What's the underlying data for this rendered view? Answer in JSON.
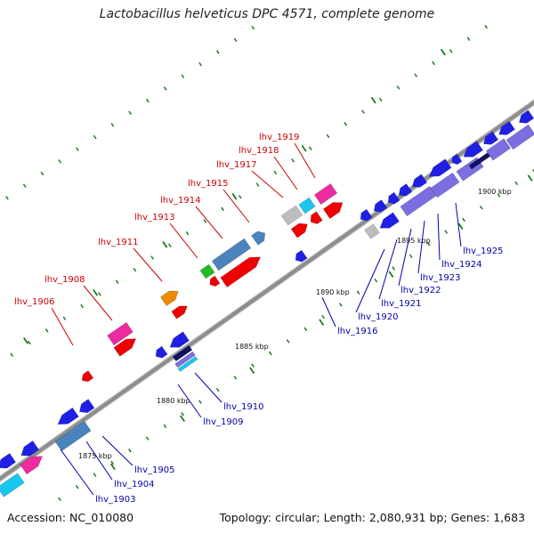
{
  "title": "Lactobacillus helveticus DPC 4571, complete genome",
  "footer": {
    "accession": "Accession: NC_010080",
    "topology": "Topology: circular; Length: 2,080,931 bp; Genes: 1,683"
  },
  "colors": {
    "forward_label": "#cc0000",
    "reverse_label": "#0000aa",
    "backbone": "#8c8c8c",
    "tick": "#1e7a1e",
    "cds_blue": "#1f1fe6",
    "cds_red": "#ee0000",
    "cds_pink": "#ee2aa0",
    "cds_steel": "#4b84bd",
    "cds_purple": "#7a6ee0",
    "cds_gray": "#bdbdbd",
    "cds_cyan": "#18c6ee",
    "cds_orange": "#ee8800",
    "cds_green": "#22bb22",
    "cds_navy": "#101060"
  },
  "ticks": [
    {
      "label": "1875 kbp"
    },
    {
      "label": "1880 kbp"
    },
    {
      "label": "1885 kbp"
    },
    {
      "label": "1890 kbp"
    },
    {
      "label": "1895 kbp"
    },
    {
      "label": "1900 kbp"
    }
  ],
  "forward_labels": [
    {
      "text": "lhv_1906"
    },
    {
      "text": "lhv_1908"
    },
    {
      "text": "lhv_1911"
    },
    {
      "text": "lhv_1913"
    },
    {
      "text": "lhv_1914"
    },
    {
      "text": "lhv_1915"
    },
    {
      "text": "lhv_1917"
    },
    {
      "text": "lhv_1918"
    },
    {
      "text": "lhv_1919"
    }
  ],
  "reverse_labels": [
    {
      "text": "lhv_1903"
    },
    {
      "text": "lhv_1904"
    },
    {
      "text": "lhv_1905"
    },
    {
      "text": "lhv_1909"
    },
    {
      "text": "lhv_1910"
    },
    {
      "text": "lhv_1916"
    },
    {
      "text": "lhv_1920"
    },
    {
      "text": "lhv_1921"
    },
    {
      "text": "lhv_1922"
    },
    {
      "text": "lhv_1923"
    },
    {
      "text": "lhv_1924"
    },
    {
      "text": "lhv_1925"
    }
  ]
}
